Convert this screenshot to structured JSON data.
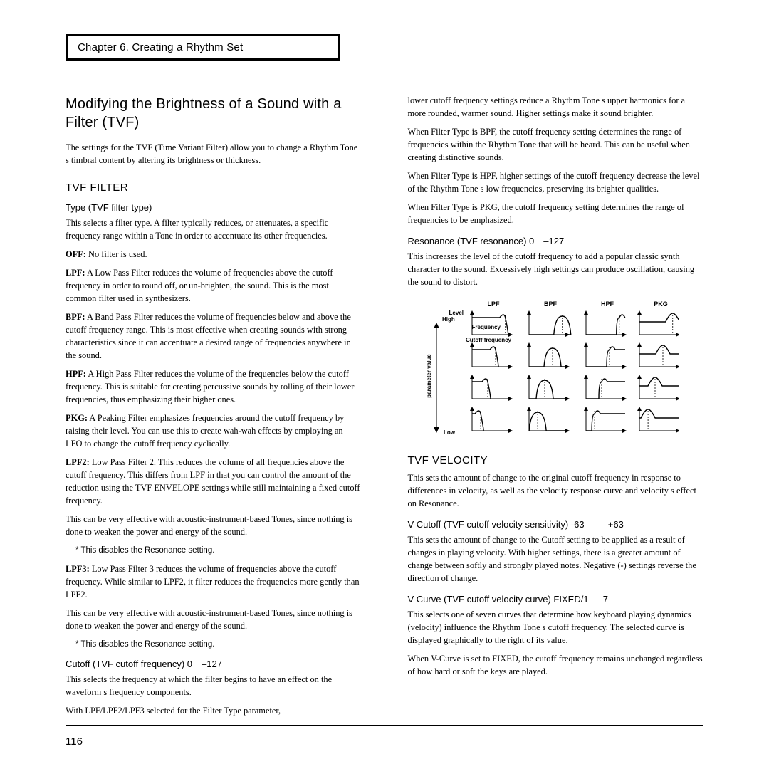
{
  "chapter": "Chapter 6. Creating a Rhythm Set",
  "left": {
    "h1": "Modifying the Brightness of a Sound with a Filter (TVF)",
    "intro": "The settings for the TVF (Time Variant Filter) allow you to change a Rhythm Tone s timbral content by altering its brightness or thickness.",
    "h2_filter": "TVF FILTER",
    "h3_type": "Type (TVF filter type)",
    "type_intro": "This selects a filter type. A filter typically reduces, or attenuates, a specific frequency range within a Tone in order to accentuate its other frequencies.",
    "off_b": "OFF:",
    "off_t": " No filter is used.",
    "lpf_b": "LPF:",
    "lpf_t": " A Low Pass Filter reduces the volume of frequencies above the cutoff frequency in order to round off, or un-brighten, the sound. This is the most common filter used in synthesizers.",
    "bpf_b": "BPF:",
    "bpf_t": " A Band Pass Filter reduces the volume of frequencies below and above the cutoff frequency range. This is most effective when creating sounds with strong characteristics since it can accentuate a desired range of frequencies anywhere in the sound.",
    "hpf_b": "HPF:",
    "hpf_t": " A High Pass Filter reduces the volume of the frequencies below the cutoff frequency. This is suitable for creating percussive sounds by rolling of their lower frequencies, thus emphasizing their higher ones.",
    "pkg_b": "PKG:",
    "pkg_t": " A Peaking Filter emphasizes frequencies around the cutoff frequency by raising their level. You can use this to create wah-wah effects by employing an LFO to change the cutoff frequency cyclically.",
    "lpf2_b": "LPF2:",
    "lpf2_t": " Low Pass Filter 2. This reduces the volume of all frequencies above the cutoff frequency. This differs from LPF in that you can control the amount of the reduction using the TVF ENVELOPE settings while still maintaining a fixed cutoff frequency.",
    "lpf2_extra": "This can be very effective with acoustic-instrument-based Tones, since nothing is done to weaken the power and energy of the sound.",
    "note1": "This disables the Resonance setting.",
    "lpf3_b": "LPF3:",
    "lpf3_t": " Low Pass Filter 3 reduces the volume of frequencies above the cutoff frequency. While similar to LPF2, it filter reduces the frequencies more gently than LPF2.",
    "lpf3_extra": "This can be very effective with acoustic-instrument-based Tones, since nothing is done to weaken the power and energy of the sound.",
    "note2": "This disables the Resonance setting.",
    "h3_cutoff": "Cutoff (TVF cutoff frequency) 0 –127",
    "cutoff_p1": "This selects the frequency at which the filter begins to have an effect on the waveform s frequency components.",
    "cutoff_p2": "With LPF/LPF2/LPF3 selected for the Filter Type parameter,"
  },
  "right": {
    "p1": "lower cutoff frequency settings reduce a Rhythm Tone s upper harmonics for a more rounded, warmer sound. Higher settings make it sound brighter.",
    "p2": "When Filter Type is BPF, the cutoff frequency setting determines the range of frequencies within the Rhythm Tone that will be heard. This can be useful when creating distinctive sounds.",
    "p3": "When Filter Type is HPF, higher settings of the cutoff frequency decrease the level of the Rhythm Tone s low frequencies, preserving its brighter qualities.",
    "p4": "When Filter Type is PKG, the cutoff frequency setting determines the range of frequencies to be emphasized.",
    "h3_res": "Resonance (TVF resonance) 0 –127",
    "res_p": "This increases the level of the cutoff frequency to add a popular classic synth character to the sound. Excessively high settings can produce oscillation, causing the sound to distort.",
    "diagram": {
      "col_labels": [
        "LPF",
        "BPF",
        "HPF",
        "PKG"
      ],
      "level": "Level",
      "high": "High",
      "low": "Low",
      "freq": "Frequency",
      "cutoff": "Cutoff frequency",
      "paramval": "parameter value"
    },
    "h2_vel": "TVF VELOCITY",
    "vel_intro": "This sets the amount of change to the original cutoff frequency in response to differences in velocity, as well as the velocity response curve and velocity s effect on Resonance.",
    "h3_vcut": "V-Cutoff (TVF cutoff velocity sensitivity) -63 – +63",
    "vcut_p": "This sets the amount of change to the Cutoff setting to be applied as a result of changes in playing velocity. With higher settings, there is a greater amount of change between softly and strongly played notes. Negative (-) settings reverse the direction of change.",
    "h3_vcurve": "V-Curve (TVF cutoff velocity curve) FIXED/1 –7",
    "vcurve_p1": "This selects one of seven curves that determine how keyboard playing dynamics (velocity) influence the Rhythm Tone s cutoff frequency. The selected curve is displayed graphically to the right of its value.",
    "vcurve_p2": "When V-Curve is set to  FIXED,  the cutoff frequency remains unchanged regardless of how hard or soft the keys are played."
  },
  "page": "116"
}
